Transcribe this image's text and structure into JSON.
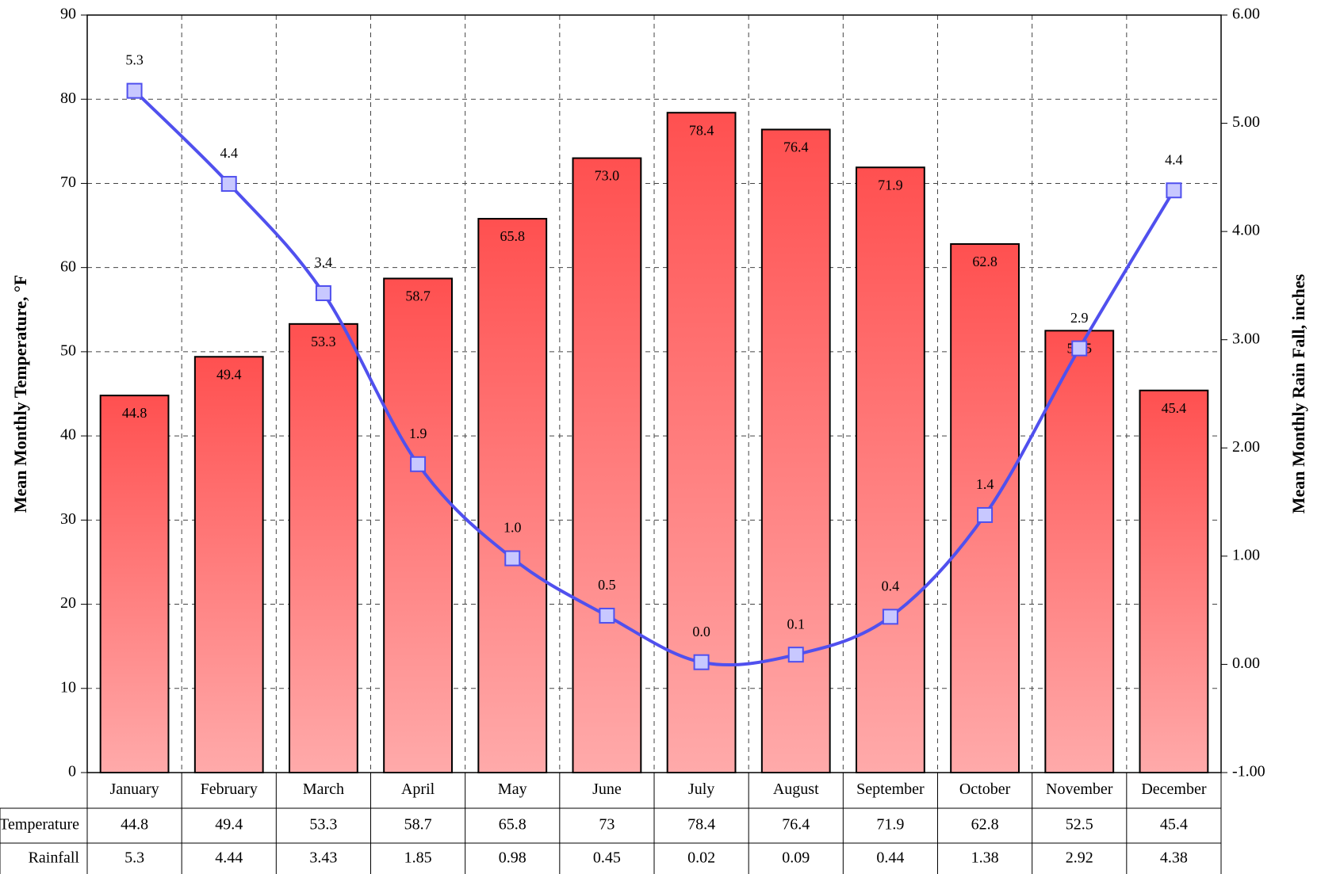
{
  "chart_data": {
    "type": "bar",
    "y_label": "Mean Monthly Temperature, °F",
    "y2_label": "Mean Monthly Rain Fall, inches",
    "categories": [
      "January",
      "February",
      "March",
      "April",
      "May",
      "June",
      "July",
      "August",
      "September",
      "October",
      "November",
      "December"
    ],
    "series": [
      {
        "name": "Temperature",
        "type": "bar",
        "axis": "y",
        "color": "#ff5050",
        "values": [
          44.8,
          49.4,
          53.3,
          58.7,
          65.8,
          73,
          78.4,
          76.4,
          71.9,
          62.8,
          52.5,
          45.4
        ],
        "value_labels": [
          "44.8",
          "49.4",
          "53.3",
          "58.7",
          "65.8",
          "73.0",
          "78.4",
          "76.4",
          "71.9",
          "62.8",
          "52.5",
          "45.4"
        ]
      },
      {
        "name": "Rainfall",
        "type": "line",
        "axis": "y2",
        "color": "#5050ee",
        "values": [
          5.3,
          4.44,
          3.43,
          1.85,
          0.98,
          0.45,
          0.02,
          0.09,
          0.44,
          1.38,
          2.92,
          4.38
        ],
        "value_labels": [
          "5.3",
          "4.4",
          "3.4",
          "1.9",
          "1.0",
          "0.5",
          "0.0",
          "0.1",
          "0.4",
          "1.4",
          "2.9",
          "4.4"
        ]
      }
    ],
    "ylim": [
      0,
      90
    ],
    "yticks": [
      0,
      10,
      20,
      30,
      40,
      50,
      60,
      70,
      80,
      90
    ],
    "y2lim": [
      -1,
      6
    ],
    "y2ticks": [
      {
        "value": -1,
        "label": "-1.00"
      },
      {
        "value": 0,
        "label": "0.00"
      },
      {
        "value": 1,
        "label": "1.00"
      },
      {
        "value": 2,
        "label": "2.00"
      },
      {
        "value": 3,
        "label": "3.00"
      },
      {
        "value": 4,
        "label": "4.00"
      },
      {
        "value": 5,
        "label": "5.00"
      },
      {
        "value": 6,
        "label": "6.00"
      }
    ],
    "grid": true
  }
}
